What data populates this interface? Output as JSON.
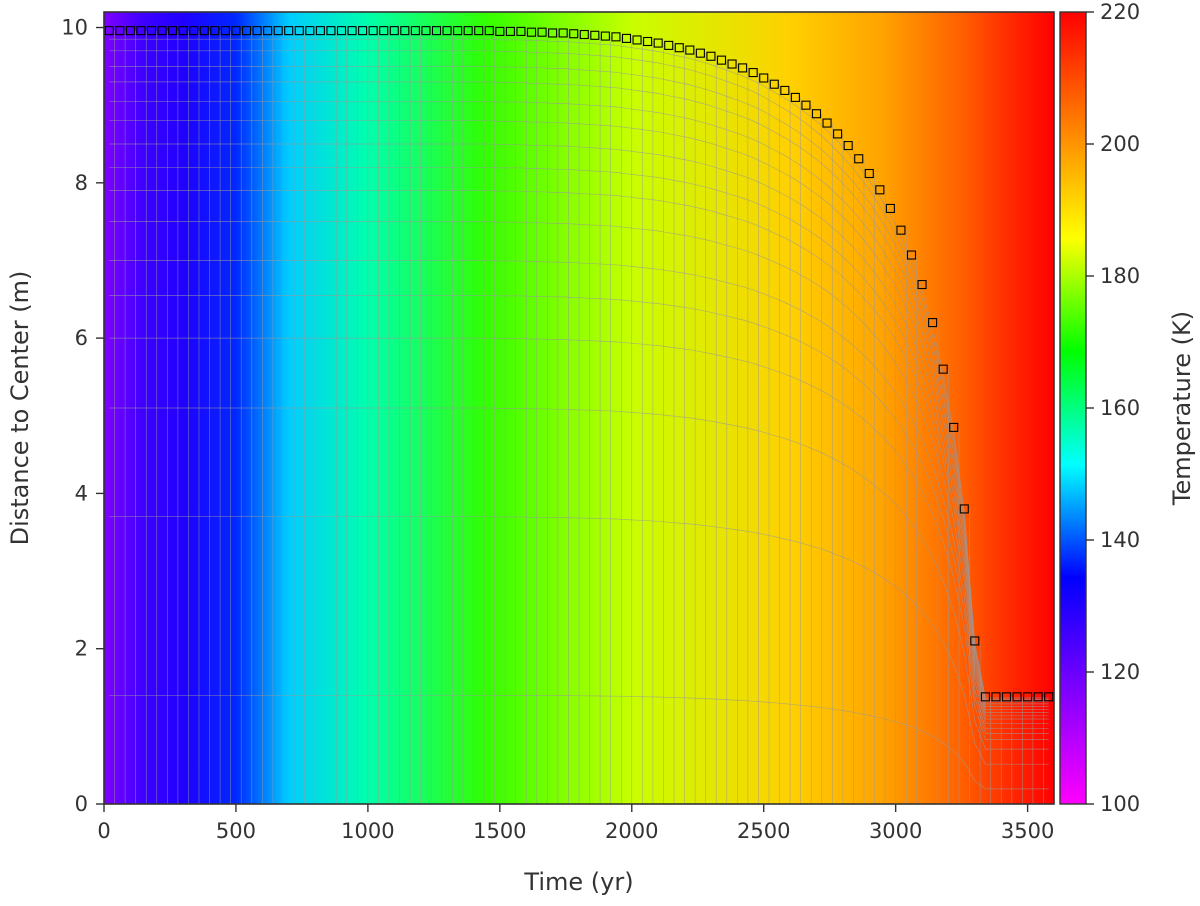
{
  "chart_data": {
    "type": "heatmap",
    "title": "",
    "xlabel": "Time (yr)",
    "ylabel": "Distance to Center (m)",
    "xlim": [
      0,
      3600
    ],
    "ylim": [
      0,
      10.2
    ],
    "x_ticks": [
      0,
      500,
      1000,
      1500,
      2000,
      2500,
      3000,
      3500
    ],
    "x_tick_labels": [
      "0",
      "500",
      "1000",
      "1500",
      "2000",
      "2500",
      "3000",
      "3500"
    ],
    "y_ticks": [
      0,
      2,
      4,
      6,
      8,
      10
    ],
    "y_tick_labels": [
      "0",
      "2",
      "4",
      "6",
      "8",
      "10"
    ],
    "grid": false,
    "colorbar": {
      "label": "Temperature (K)",
      "range": [
        100,
        220
      ],
      "ticks": [
        100,
        120,
        140,
        160,
        180,
        200,
        220
      ],
      "tick_labels": [
        "100",
        "120",
        "140",
        "160",
        "180",
        "200",
        "220"
      ],
      "colors": [
        "#ff00ff",
        "#7f00ff",
        "#0000ff",
        "#00ffff",
        "#00ff00",
        "#ffff00",
        "#ff7f00",
        "#ff0000"
      ]
    },
    "temperature_vs_time": {
      "time_yr": [
        0,
        150,
        300,
        500,
        700,
        1000,
        1450,
        2000,
        2600,
        2950,
        3250,
        3450,
        3600
      ],
      "temperature_K": [
        117,
        126,
        130,
        137,
        148,
        157,
        172,
        182,
        192,
        198,
        207,
        215,
        220
      ]
    },
    "outer_radius_markers": {
      "time_yr": [
        20,
        60,
        100,
        140,
        180,
        220,
        260,
        300,
        340,
        380,
        420,
        460,
        500,
        540,
        580,
        620,
        660,
        700,
        740,
        780,
        820,
        860,
        900,
        940,
        980,
        1020,
        1060,
        1100,
        1140,
        1180,
        1220,
        1260,
        1300,
        1340,
        1380,
        1420,
        1460,
        1500,
        1540,
        1580,
        1620,
        1660,
        1700,
        1740,
        1780,
        1820,
        1860,
        1900,
        1940,
        1980,
        2020,
        2060,
        2100,
        2140,
        2180,
        2220,
        2260,
        2300,
        2340,
        2380,
        2420,
        2460,
        2500,
        2540,
        2580,
        2620,
        2660,
        2700,
        2740,
        2780,
        2820,
        2860,
        2900,
        2940,
        2980,
        3020,
        3060,
        3100,
        3140,
        3180,
        3220,
        3260,
        3300,
        3340,
        3380,
        3420,
        3460,
        3500,
        3540,
        3580
      ],
      "radius_m": [
        9.96,
        9.96,
        9.96,
        9.96,
        9.96,
        9.96,
        9.96,
        9.96,
        9.96,
        9.96,
        9.96,
        9.96,
        9.96,
        9.96,
        9.96,
        9.96,
        9.96,
        9.96,
        9.96,
        9.96,
        9.96,
        9.96,
        9.96,
        9.96,
        9.96,
        9.96,
        9.96,
        9.96,
        9.96,
        9.96,
        9.96,
        9.96,
        9.96,
        9.96,
        9.96,
        9.96,
        9.96,
        9.95,
        9.95,
        9.95,
        9.94,
        9.94,
        9.93,
        9.93,
        9.92,
        9.91,
        9.9,
        9.89,
        9.88,
        9.86,
        9.84,
        9.82,
        9.8,
        9.77,
        9.74,
        9.71,
        9.67,
        9.63,
        9.58,
        9.53,
        9.48,
        9.42,
        9.35,
        9.27,
        9.19,
        9.1,
        9.0,
        8.89,
        8.77,
        8.63,
        8.48,
        8.31,
        8.12,
        7.91,
        7.67,
        7.39,
        7.07,
        6.69,
        6.2,
        5.6,
        4.85,
        3.8,
        2.1,
        1.38,
        1.38,
        1.38,
        1.38,
        1.38,
        1.38,
        1.38
      ]
    }
  }
}
